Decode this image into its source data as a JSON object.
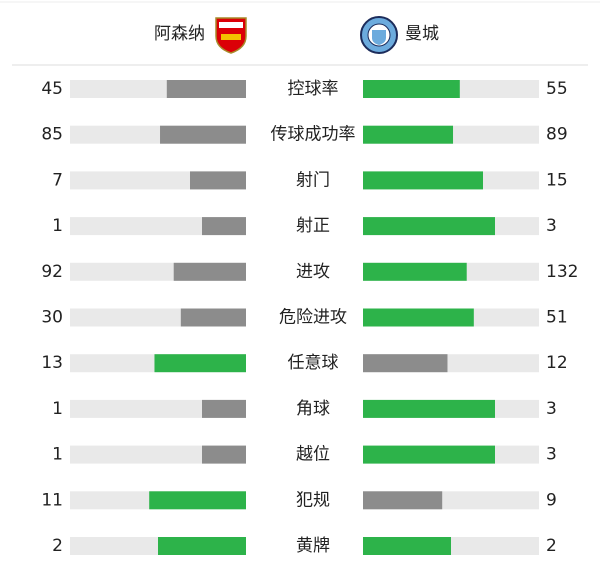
{
  "chart_data": {
    "type": "diverging-bar",
    "categories": [
      "控球率",
      "传球成功率",
      "射门",
      "射正",
      "进攻",
      "危险进攻",
      "任意球",
      "角球",
      "越位",
      "犯规",
      "黄牌"
    ],
    "series": [
      {
        "name": "阿森纳",
        "values": [
          45,
          85,
          7,
          1,
          92,
          30,
          13,
          1,
          1,
          11,
          2
        ]
      },
      {
        "name": "曼城",
        "values": [
          55,
          89,
          15,
          3,
          132,
          51,
          12,
          3,
          3,
          9,
          2
        ]
      }
    ],
    "colors": {
      "leading": "#2db34a",
      "trailing": "#8c8c8c",
      "track": "#e9e9e9"
    }
  }
}
